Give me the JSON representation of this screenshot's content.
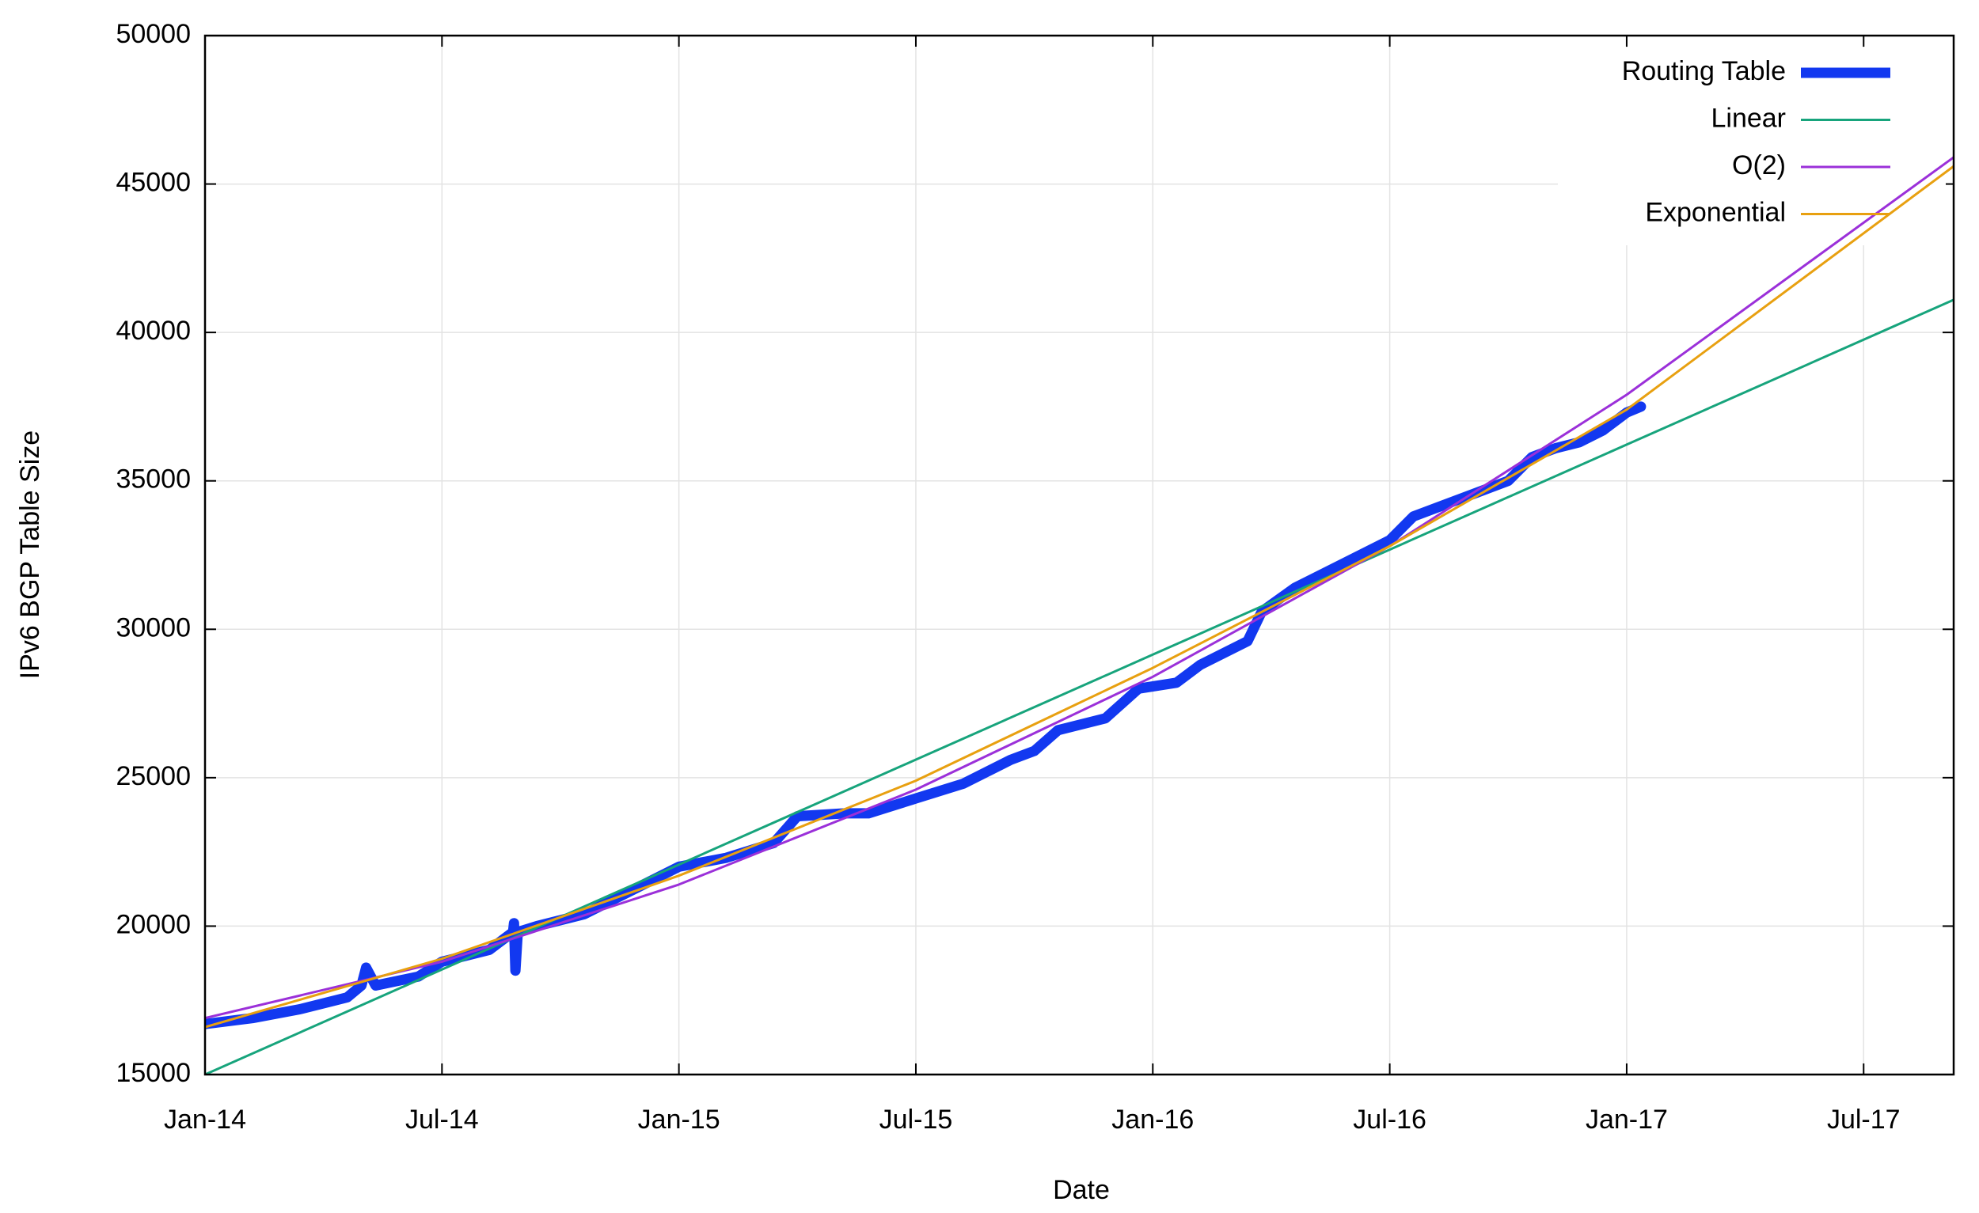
{
  "chart_data": {
    "type": "line",
    "xlabel": "Date",
    "ylabel": "IPv6 BGP Table Size",
    "xlim": [
      2014,
      2017.69
    ],
    "ylim": [
      15000,
      50000
    ],
    "xticks": [
      {
        "value": 2014,
        "label": "Jan-14"
      },
      {
        "value": 2014.5,
        "label": "Jul-14"
      },
      {
        "value": 2015,
        "label": "Jan-15"
      },
      {
        "value": 2015.5,
        "label": "Jul-15"
      },
      {
        "value": 2016,
        "label": "Jan-16"
      },
      {
        "value": 2016.5,
        "label": "Jul-16"
      },
      {
        "value": 2017,
        "label": "Jan-17"
      },
      {
        "value": 2017.5,
        "label": "Jul-17"
      }
    ],
    "yticks": [
      15000,
      20000,
      25000,
      30000,
      35000,
      40000,
      45000,
      50000
    ],
    "grid": true,
    "legend": "top-right",
    "series": [
      {
        "name": "Routing Table",
        "color": "#1238f0",
        "width": 13,
        "x": [
          2014.0,
          2014.1,
          2014.2,
          2014.3,
          2014.33,
          2014.34,
          2014.36,
          2014.45,
          2014.5,
          2014.6,
          2014.65,
          2014.652,
          2014.655,
          2014.66,
          2014.7,
          2014.8,
          2014.9,
          2015.0,
          2015.1,
          2015.2,
          2015.25,
          2015.35,
          2015.4,
          2015.5,
          2015.6,
          2015.7,
          2015.75,
          2015.8,
          2015.9,
          2015.97,
          2016.05,
          2016.1,
          2016.2,
          2016.23,
          2016.3,
          2016.4,
          2016.5,
          2016.55,
          2016.65,
          2016.75,
          2016.8,
          2016.85,
          2016.9,
          2016.95,
          2017.0,
          2017.03
        ],
        "values": [
          16700,
          16900,
          17200,
          17600,
          18000,
          18600,
          18000,
          18300,
          18800,
          19200,
          19800,
          20100,
          18500,
          19800,
          20000,
          20400,
          21200,
          22000,
          22300,
          22800,
          23700,
          23800,
          23800,
          24300,
          24800,
          25600,
          25900,
          26600,
          27000,
          28000,
          28200,
          28800,
          29600,
          30600,
          31400,
          32200,
          33000,
          33800,
          34400,
          35000,
          35800,
          36100,
          36300,
          36700,
          37300,
          37500
        ]
      },
      {
        "name": "Linear",
        "color": "#17a47c",
        "width": 3,
        "x": [
          2014,
          2014.5,
          2015,
          2015.5,
          2016,
          2016.5,
          2017,
          2017.69
        ],
        "values": [
          15000,
          18537,
          22073,
          25610,
          29146,
          32683,
          36220,
          41100
        ]
      },
      {
        "name": "O(2)",
        "color": "#9b30d9",
        "width": 3,
        "x": [
          2014,
          2014.5,
          2015,
          2015.5,
          2016,
          2016.5,
          2017,
          2017.69
        ],
        "values": [
          16900,
          18800,
          21400,
          24600,
          28400,
          32800,
          37900,
          45900
        ]
      },
      {
        "name": "Exponential",
        "color": "#e8a010",
        "width": 3,
        "x": [
          2014,
          2014.5,
          2015,
          2015.5,
          2016,
          2016.5,
          2017,
          2017.69
        ],
        "values": [
          16600,
          18900,
          21700,
          24900,
          28700,
          32800,
          37400,
          45600
        ]
      }
    ]
  }
}
